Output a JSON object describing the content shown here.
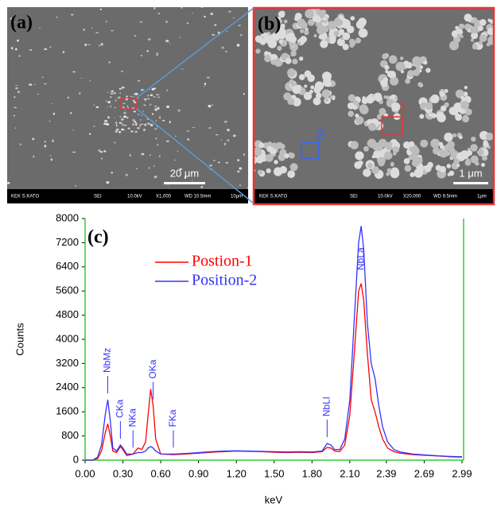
{
  "panels": [
    {
      "label": "(a)",
      "scale_label": "20 μm",
      "info": [
        "KEK S.KATO",
        "SEI",
        "10.0kV",
        "X1,000",
        "WD 10.5mm",
        "10μm"
      ]
    },
    {
      "label": "(b)",
      "scale_label": "1 μm",
      "info": [
        "KEK S.KATO",
        "SEI",
        "10.0kV",
        "X20,000",
        "WD 9.5mm",
        "1μm"
      ],
      "markers": [
        "1",
        "2"
      ]
    }
  ],
  "chart_data": {
    "type": "line",
    "title": "(c)",
    "x_label": "keV",
    "y_label": "Counts",
    "xlim": [
      0,
      2.99
    ],
    "xticks": [
      {
        "value": 0,
        "label": "0.00"
      },
      {
        "value": 0.3,
        "label": "0.30"
      },
      {
        "value": 0.6,
        "label": "0.60"
      },
      {
        "value": 0.9,
        "label": "0.90"
      },
      {
        "value": 1.2,
        "label": "1.20"
      },
      {
        "value": 1.5,
        "label": "1.50"
      },
      {
        "value": 1.8,
        "label": "1.80"
      },
      {
        "value": 2.1,
        "label": "2.10"
      },
      2.39,
      2.69,
      2.99
    ],
    "ylim": [
      0,
      8000
    ],
    "yticks": [
      0,
      800,
      1600,
      2400,
      3200,
      4000,
      4800,
      5600,
      6400,
      7200,
      8000
    ],
    "grid": false,
    "legend": "upper left",
    "x": [
      0,
      0.06,
      0.1,
      0.13,
      0.16,
      0.18,
      0.2,
      0.22,
      0.25,
      0.28,
      0.3,
      0.33,
      0.38,
      0.42,
      0.45,
      0.48,
      0.5,
      0.52,
      0.54,
      0.56,
      0.6,
      0.7,
      0.8,
      0.9,
      1.0,
      1.1,
      1.2,
      1.3,
      1.4,
      1.5,
      1.6,
      1.7,
      1.8,
      1.88,
      1.92,
      1.95,
      1.98,
      2.02,
      2.06,
      2.1,
      2.14,
      2.17,
      2.19,
      2.21,
      2.24,
      2.27,
      2.3,
      2.33,
      2.36,
      2.4,
      2.45,
      2.5,
      2.6,
      2.7,
      2.8,
      2.9,
      2.99
    ],
    "series": [
      {
        "name": "Postion-1",
        "color": "#ff0000",
        "values": [
          0,
          0,
          50,
          300,
          900,
          1200,
          800,
          300,
          250,
          450,
          350,
          150,
          200,
          400,
          350,
          600,
          1500,
          2350,
          1800,
          700,
          200,
          180,
          200,
          230,
          260,
          280,
          300,
          290,
          280,
          260,
          250,
          260,
          250,
          280,
          420,
          400,
          300,
          280,
          500,
          1500,
          3800,
          5600,
          5850,
          5300,
          3500,
          2000,
          1600,
          1100,
          700,
          400,
          280,
          230,
          180,
          160,
          140,
          110,
          100
        ]
      },
      {
        "name": "Position-2",
        "color": "#3333ff",
        "values": [
          0,
          0,
          100,
          500,
          1500,
          2000,
          1300,
          400,
          300,
          500,
          400,
          200,
          200,
          250,
          250,
          300,
          400,
          450,
          400,
          300,
          200,
          200,
          220,
          250,
          280,
          300,
          310,
          300,
          290,
          280,
          270,
          280,
          270,
          300,
          550,
          500,
          350,
          350,
          700,
          2000,
          5000,
          7200,
          7750,
          7000,
          4500,
          3200,
          2700,
          1800,
          1100,
          600,
          350,
          270,
          200,
          170,
          140,
          120,
          110
        ]
      }
    ],
    "annotations": [
      {
        "text": "NbMz",
        "x": 0.18
      },
      {
        "text": "CKa",
        "x": 0.28
      },
      {
        "text": "NKa",
        "x": 0.38
      },
      {
        "text": "OKa",
        "x": 0.54
      },
      {
        "text": "FKa",
        "x": 0.7
      },
      {
        "text": "NbLl",
        "x": 1.92
      },
      {
        "text": "NbLa",
        "x": 2.19
      }
    ]
  }
}
